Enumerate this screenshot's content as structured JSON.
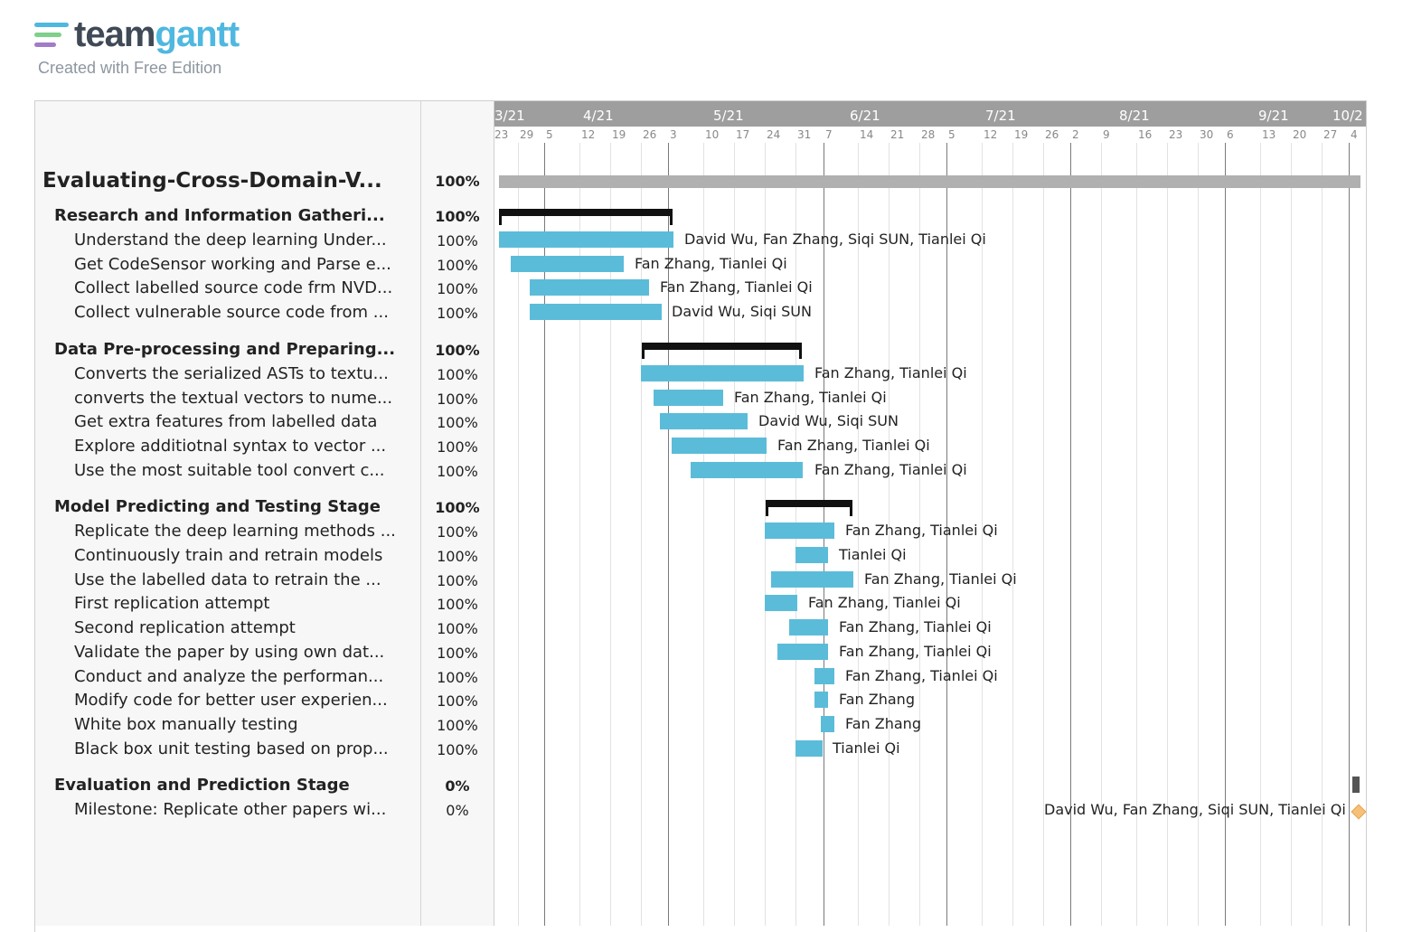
{
  "brand": {
    "word_part1": "team",
    "word_part2": "gantt",
    "subtitle": "Created with Free Edition",
    "bar_colors": [
      "#4fb8e0",
      "#7ed08a",
      "#a27cc9"
    ]
  },
  "colors": {
    "task_bar": "#5bbcd9",
    "project_bar": "#b0b0b0",
    "group_bar": "#111111",
    "milestone": "#f6c07a",
    "month_band": "#9e9e9e"
  },
  "timeline": {
    "months": [
      {
        "label": "3/21",
        "pos": 0
      },
      {
        "label": "4/21",
        "pos": 0
      },
      {
        "label": "5/21",
        "pos": 0
      },
      {
        "label": "6/21",
        "pos": 0
      },
      {
        "label": "7/21",
        "pos": 0
      },
      {
        "label": "8/21",
        "pos": 0
      },
      {
        "label": "9/21",
        "pos": 0
      },
      {
        "label": "10/2",
        "pos": 0
      }
    ],
    "weeks": [
      "23",
      "29",
      "5",
      "12",
      "19",
      "26",
      "3",
      "10",
      "17",
      "24",
      "31",
      "7",
      "14",
      "21",
      "28",
      "5",
      "12",
      "19",
      "26",
      "2",
      "9",
      "16",
      "23",
      "30",
      "6",
      "13",
      "20",
      "27",
      "4"
    ],
    "month_start_week_index": [
      2,
      6,
      11,
      15,
      19,
      24,
      28
    ]
  },
  "project": {
    "name": "Evaluating-Cross-Domain-V...",
    "percent": "100%"
  },
  "groups": [
    {
      "name": "Research and Information Gatheri...",
      "percent": "100%",
      "tasks": [
        {
          "name": "Understand the deep learning Under...",
          "percent": "100%",
          "assignees": "David Wu, Fan Zhang, Siqi SUN, Tianlei Qi"
        },
        {
          "name": "Get CodeSensor working and Parse e...",
          "percent": "100%",
          "assignees": "Fan Zhang, Tianlei Qi"
        },
        {
          "name": "Collect labelled source code frm NVD...",
          "percent": "100%",
          "assignees": "Fan Zhang, Tianlei Qi"
        },
        {
          "name": "Collect vulnerable source code from ...",
          "percent": "100%",
          "assignees": "David Wu, Siqi SUN"
        }
      ]
    },
    {
      "name": "Data Pre-processing and Preparing...",
      "percent": "100%",
      "tasks": [
        {
          "name": "Converts the serialized ASTs to textu...",
          "percent": "100%",
          "assignees": "Fan Zhang, Tianlei Qi"
        },
        {
          "name": "converts the textual vectors to nume...",
          "percent": "100%",
          "assignees": "Fan Zhang, Tianlei Qi"
        },
        {
          "name": "Get extra features from labelled data",
          "percent": "100%",
          "assignees": "David Wu, Siqi SUN"
        },
        {
          "name": "Explore additiotnal syntax to vector ...",
          "percent": "100%",
          "assignees": "Fan Zhang, Tianlei Qi"
        },
        {
          "name": "Use the most suitable tool convert c...",
          "percent": "100%",
          "assignees": "Fan Zhang, Tianlei Qi"
        }
      ]
    },
    {
      "name": "Model Predicting and Testing Stage",
      "percent": "100%",
      "tasks": [
        {
          "name": "Replicate the deep learning methods ...",
          "percent": "100%",
          "assignees": "Fan Zhang, Tianlei Qi"
        },
        {
          "name": "Continuously train and retrain models",
          "percent": "100%",
          "assignees": "Tianlei Qi"
        },
        {
          "name": "Use the labelled data to retrain the ...",
          "percent": "100%",
          "assignees": "Fan Zhang, Tianlei Qi"
        },
        {
          "name": "First replication attempt",
          "percent": "100%",
          "assignees": "Fan Zhang, Tianlei Qi"
        },
        {
          "name": "Second replication attempt",
          "percent": "100%",
          "assignees": "Fan Zhang, Tianlei Qi"
        },
        {
          "name": "Validate the paper by using own dat...",
          "percent": "100%",
          "assignees": "Fan Zhang, Tianlei Qi"
        },
        {
          "name": "Conduct and analyze the performan...",
          "percent": "100%",
          "assignees": "Fan Zhang, Tianlei Qi"
        },
        {
          "name": "Modify code for better user experien...",
          "percent": "100%",
          "assignees": "Fan Zhang"
        },
        {
          "name": "White box manually testing",
          "percent": "100%",
          "assignees": "Fan Zhang"
        },
        {
          "name": "Black box unit testing based on prop...",
          "percent": "100%",
          "assignees": "Tianlei Qi"
        }
      ]
    },
    {
      "name": "Evaluation and Prediction Stage",
      "percent": "0%",
      "tasks": [
        {
          "name": "Milestone: Replicate other papers wi...",
          "percent": "0%",
          "assignees": "David Wu, Fan Zhang, Siqi SUN, Tianlei Qi",
          "milestone": true
        }
      ]
    }
  ]
}
